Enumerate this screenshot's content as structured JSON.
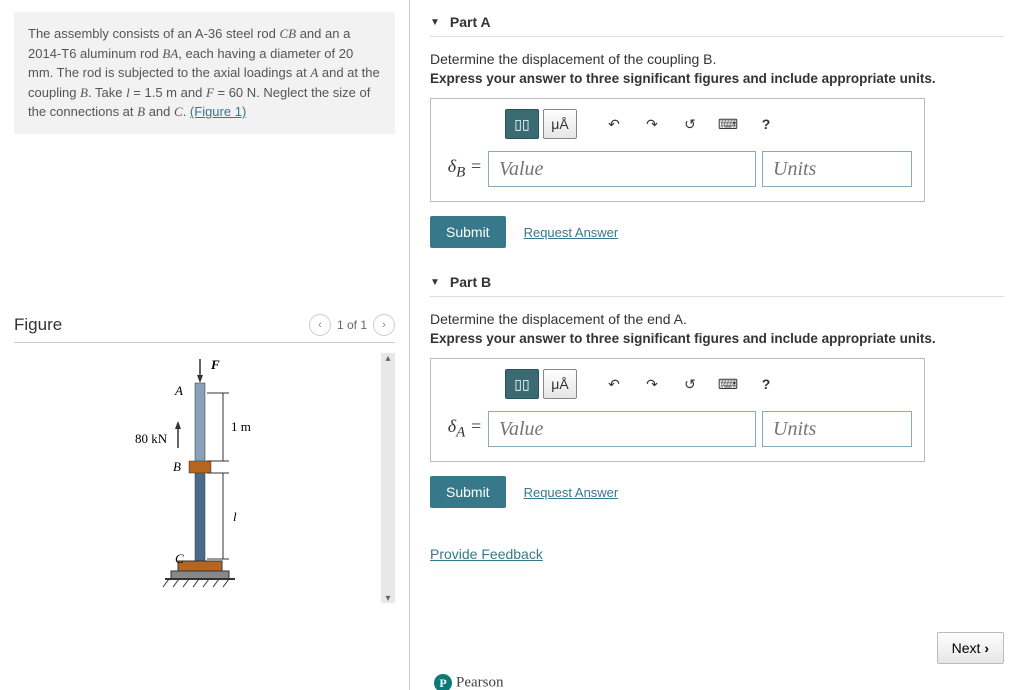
{
  "problem": {
    "text_html": "The assembly consists of an A-36 steel rod <span class='math'>CB</span> and an a 2014-T6 aluminum rod <span class='math'>BA</span>, each having a diameter of 20 mm. The rod is subjected to the axial loadings at <span class='math'>A</span> and at the coupling <span class='math'>B</span>. Take <span class='math'>l</span> = 1.5 m and <span class='math'>F</span> = 60 N. Neglect the size of the connections at <span class='math'>B</span> and <span class='math'>C</span>. ",
    "figure_link": "(Figure 1)"
  },
  "figure": {
    "title": "Figure",
    "counter": "1 of 1",
    "labels": {
      "F": "F",
      "A": "A",
      "B": "B",
      "C": "C",
      "load": "80 kN",
      "dim1": "1 m",
      "dim2": "l"
    },
    "colors": {
      "top_rod": "#8aa0b8",
      "bottom_rod": "#4a6a8a",
      "coupling": "#b5651d",
      "base": "#777",
      "arrow": "#333"
    }
  },
  "parts": [
    {
      "id": "A",
      "title": "Part A",
      "question": "Determine the displacement of the coupling <span class='math'>B</span>.",
      "instruction": "Express your answer to three significant figures and include appropriate units.",
      "symbol": "δ<sub>B</sub> =",
      "value_placeholder": "Value",
      "units_placeholder": "Units"
    },
    {
      "id": "B",
      "title": "Part B",
      "question": "Determine the displacement of the end <span class='math'>A</span>.",
      "instruction": "Express your answer to three significant figures and include appropriate units.",
      "symbol": "δ<sub>A</sub> =",
      "value_placeholder": "Value",
      "units_placeholder": "Units"
    }
  ],
  "toolbar": {
    "template": "▯▯",
    "units_btn": "μÅ",
    "undo": "↶",
    "redo": "↷",
    "reset": "↺",
    "keyboard": "⌨",
    "help": "?"
  },
  "buttons": {
    "submit": "Submit",
    "request": "Request Answer",
    "feedback": "Provide Feedback",
    "next": "Next ",
    "pearson": "Pearson"
  },
  "colors": {
    "accent": "#37788a",
    "link": "#37788a"
  }
}
